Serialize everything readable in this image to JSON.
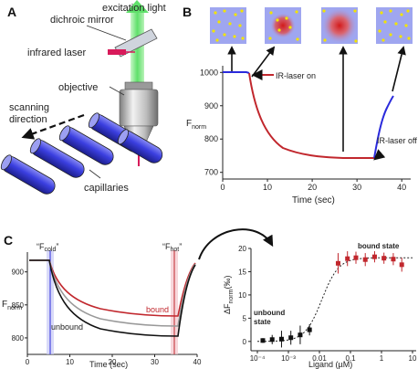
{
  "panels": {
    "a": "A",
    "b": "B",
    "c": "C"
  },
  "panel_a": {
    "excitation": "excitation light",
    "dichroic": "dichroic mirror",
    "laser": "infrared laser",
    "objective": "objective",
    "scan_line1": "scanning",
    "scan_line2": "direction",
    "capillaries": "capillaries",
    "colors": {
      "tube": "#3b3fe0",
      "excitation": "#5fe06a",
      "laser": "#d81a5a"
    }
  },
  "panel_b": {
    "ylabel": "F",
    "ylabel_sub": "norm",
    "xlabel": "Time (sec)",
    "laser_on": "IR-laser on",
    "laser_off": "IR-laser off",
    "colors": {
      "baseline": "#2a2adc",
      "heated": "#c1272d",
      "dots": "#f2e400",
      "box": "#9fa6f0"
    }
  },
  "panel_c_left": {
    "ylabel": "F",
    "ylabel_sub": "norm",
    "xlabel": "Time (sec)",
    "fcold": "“F",
    "fcold_sub": "cold",
    "fcold_end": "”",
    "fhot": "“F",
    "fhot_sub": "hot",
    "fhot_end": "”",
    "bound": "bound",
    "unbound": "unbound"
  },
  "panel_c_right": {
    "ylabel": "ΔF",
    "ylabel_sub": "norm",
    "ylabel_unit": "(‰)",
    "xlabel": "Ligand (µM)",
    "bound_state": "bound state",
    "unbound_line1": "unbound",
    "unbound_line2": "state"
  },
  "chart_data": [
    {
      "type": "line",
      "panel": "B",
      "xlim": [
        0,
        42
      ],
      "ylim": [
        680,
        1020
      ],
      "x_ticks": [
        "0",
        "10",
        "20",
        "30",
        "40"
      ],
      "y_ticks": [
        "700",
        "800",
        "900",
        "1000"
      ],
      "xlabel": "Time (sec)",
      "ylabel": "F norm",
      "annotations": [
        "IR-laser on",
        "IR-laser off"
      ]
    },
    {
      "type": "line",
      "panel": "C-left",
      "xlim": [
        0,
        40
      ],
      "ylim": [
        775,
        930
      ],
      "x_ticks": [
        "0",
        "10",
        "20",
        "30",
        "40"
      ],
      "y_ticks": [
        "800",
        "850",
        "900"
      ],
      "xlabel": "Time (sec)",
      "ylabel": "F norm",
      "series": [
        {
          "name": "bound"
        },
        {
          "name": "unbound"
        }
      ]
    },
    {
      "type": "scatter",
      "panel": "C-right",
      "x_scale": "log",
      "xlim": [
        0.0001,
        10
      ],
      "ylim": [
        -2,
        20
      ],
      "x_ticks": [
        "10⁻⁴",
        "10⁻³",
        "0.01",
        "0.1",
        "1",
        "10"
      ],
      "y_ticks": [
        "0",
        "5",
        "10",
        "15",
        "20"
      ],
      "xlabel": "Ligand (µM)",
      "ylabel": "ΔF norm (‰)",
      "unbound": {
        "x": [
          0.00015,
          0.0003,
          0.0006,
          0.0012,
          0.0024,
          0.0048
        ],
        "y": [
          0.2,
          0.4,
          0.5,
          0.8,
          1.4,
          2.5
        ],
        "err": [
          0.5,
          1.0,
          1.8,
          1.5,
          2.0,
          1.2
        ]
      },
      "bound": {
        "x": [
          0.04,
          0.08,
          0.15,
          0.3,
          0.6,
          1.2,
          2.4,
          4.5
        ],
        "y": [
          16.8,
          17.8,
          18.0,
          17.6,
          18.2,
          17.9,
          17.7,
          16.5
        ],
        "err": [
          2.2,
          1.6,
          1.3,
          1.4,
          1.2,
          1.2,
          1.3,
          1.5
        ]
      },
      "annotations": [
        "bound state",
        "unbound state"
      ]
    }
  ]
}
